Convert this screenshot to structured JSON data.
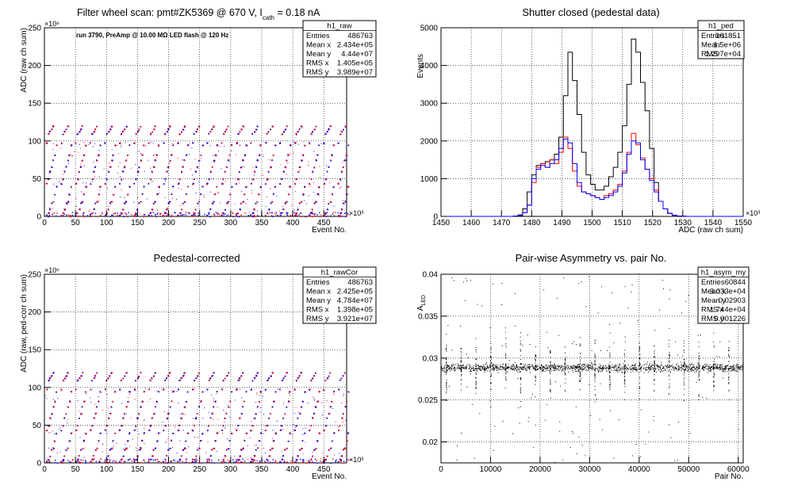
{
  "chart_data": [
    {
      "type": "scatter",
      "title": "Filter wheel scan: pmt#ZK5369 @   670 V, I",
      "title_sub": "cath",
      "title_tail": " = 0.18 nA",
      "annotation": "run 3790, PreAmp @ 10.00 MΩ LED flash @  120 Hz",
      "xlabel": "Event No.",
      "ylabel": "ADC (raw ch sum)",
      "x_exp": "×10³",
      "y_exp": "×10⁶",
      "xlim": [
        0,
        486.763
      ],
      "ylim": [
        0,
        250
      ],
      "xticks": [
        "0",
        "50",
        "100",
        "150",
        "200",
        "250",
        "300",
        "350",
        "400",
        "450"
      ],
      "yticks": [
        "0",
        "50",
        "100",
        "150",
        "200",
        "250"
      ],
      "stats": {
        "name": "h1_raw",
        "rows": [
          [
            "Entries",
            "486763"
          ],
          [
            "Mean x",
            "2.434e+05"
          ],
          [
            "Mean y",
            "4.44e+07"
          ],
          [
            "RMS x",
            "1.405e+05"
          ],
          [
            "RMS y",
            "3.989e+07"
          ]
        ]
      },
      "period_x": 23.5,
      "levels": [
        2,
        5,
        10,
        18,
        20,
        30,
        40,
        44,
        50,
        60,
        66,
        75,
        82,
        95,
        98,
        110,
        113,
        116,
        120
      ],
      "grid": true,
      "marker_colors": [
        "#0000ff",
        "#ff0000"
      ]
    },
    {
      "type": "line",
      "title": "Shutter closed (pedestal data)",
      "xlabel": "ADC (raw ch sum)",
      "ylabel": "Events",
      "x_exp": "×10³",
      "xlim": [
        1450,
        1550
      ],
      "ylim": [
        0,
        5000
      ],
      "xticks": [
        "1450",
        "1460",
        "1470",
        "1480",
        "1490",
        "1500",
        "1510",
        "1520",
        "1530",
        "1540",
        "1550"
      ],
      "yticks": [
        "0",
        "1000",
        "2000",
        "3000",
        "4000",
        "5000"
      ],
      "stats": {
        "name": "h1_ped",
        "rows": [
          [
            "Entries",
            "101851"
          ],
          [
            "Mean",
            "1.5e+06"
          ],
          [
            "RMS",
            "1.297e+04"
          ]
        ]
      },
      "bin_width": 1.5,
      "bin_start": 1474,
      "series": [
        {
          "color": "#000000",
          "values": [
            10,
            40,
            200,
            650,
            1100,
            1350,
            1400,
            1450,
            1500,
            1650,
            2100,
            3200,
            4350,
            3600,
            2700,
            1700,
            1100,
            850,
            700,
            700,
            800,
            1050,
            1300,
            1700,
            2400,
            3500,
            4700,
            4350,
            3550,
            2800,
            1800,
            900,
            400,
            200,
            80,
            30,
            10,
            5
          ]
        },
        {
          "color": "#ff0000",
          "values": [
            10,
            20,
            100,
            300,
            900,
            1300,
            1400,
            1300,
            1500,
            1400,
            1700,
            2100,
            1800,
            1200,
            800,
            650,
            600,
            550,
            500,
            450,
            550,
            600,
            700,
            850,
            1200,
            1700,
            2200,
            1900,
            1550,
            1250,
            1000,
            700,
            400,
            200,
            80,
            30,
            10,
            5
          ]
        },
        {
          "color": "#0000ff",
          "values": [
            10,
            20,
            100,
            300,
            1000,
            1250,
            1350,
            1300,
            1400,
            1500,
            1800,
            2050,
            1950,
            1400,
            900,
            650,
            600,
            550,
            500,
            450,
            500,
            550,
            650,
            800,
            1150,
            1650,
            2000,
            1950,
            1500,
            1250,
            950,
            650,
            400,
            200,
            80,
            30,
            10,
            5
          ]
        }
      ],
      "grid": true
    },
    {
      "type": "scatter",
      "title": "Pedestal-corrected",
      "xlabel": "Event No.",
      "ylabel": "ADC (raw, ped-corr ch sum)",
      "x_exp": "×10³",
      "y_exp": "×10⁶",
      "xlim": [
        0,
        486.763
      ],
      "ylim": [
        0,
        250
      ],
      "xticks": [
        "0",
        "50",
        "100",
        "150",
        "200",
        "250",
        "300",
        "350",
        "400",
        "450"
      ],
      "yticks": [
        "0",
        "50",
        "100",
        "150",
        "200",
        "250"
      ],
      "stats": {
        "name": "h1_rawCor",
        "rows": [
          [
            "Entries",
            "486763"
          ],
          [
            "Mean x",
            "2.425e+05"
          ],
          [
            "Mean y",
            "4.784e+07"
          ],
          [
            "RMS x",
            "1.398e+05"
          ],
          [
            "RMS y",
            "3.921e+07"
          ]
        ]
      },
      "period_x": 23.5,
      "levels": [
        2,
        5,
        10,
        18,
        20,
        30,
        40,
        44,
        50,
        60,
        66,
        75,
        82,
        95,
        98,
        110,
        113,
        116,
        120
      ],
      "grid": true,
      "marker_colors": [
        "#0000ff",
        "#ff0000"
      ]
    },
    {
      "type": "scatter",
      "title": "Pair-wise Asymmetry vs. pair No.",
      "xlabel": "Pair No.",
      "ylabel": "A",
      "ylabel_sub": "LED",
      "xlim": [
        0,
        61000
      ],
      "ylim": [
        0.0175,
        0.04
      ],
      "xticks": [
        "0",
        "10000",
        "20000",
        "30000",
        "40000",
        "50000",
        "60000"
      ],
      "yticks": [
        "0.02",
        "0.025",
        "0.03",
        "0.035",
        "0.04"
      ],
      "stats": {
        "name": "h1_asym_my",
        "rows": [
          [
            "Entries",
            "60844"
          ],
          [
            "Mean x",
            "3.033e+04"
          ],
          [
            "Mean y",
            "0.02903"
          ],
          [
            "RMS x",
            "1.744e+04"
          ],
          [
            "RMS y",
            "0.001226"
          ]
        ]
      },
      "band_center": 0.0289,
      "band_halfwidth": 0.0008,
      "x_max_data": 60844,
      "spike_period": 3000,
      "grid": true
    }
  ]
}
